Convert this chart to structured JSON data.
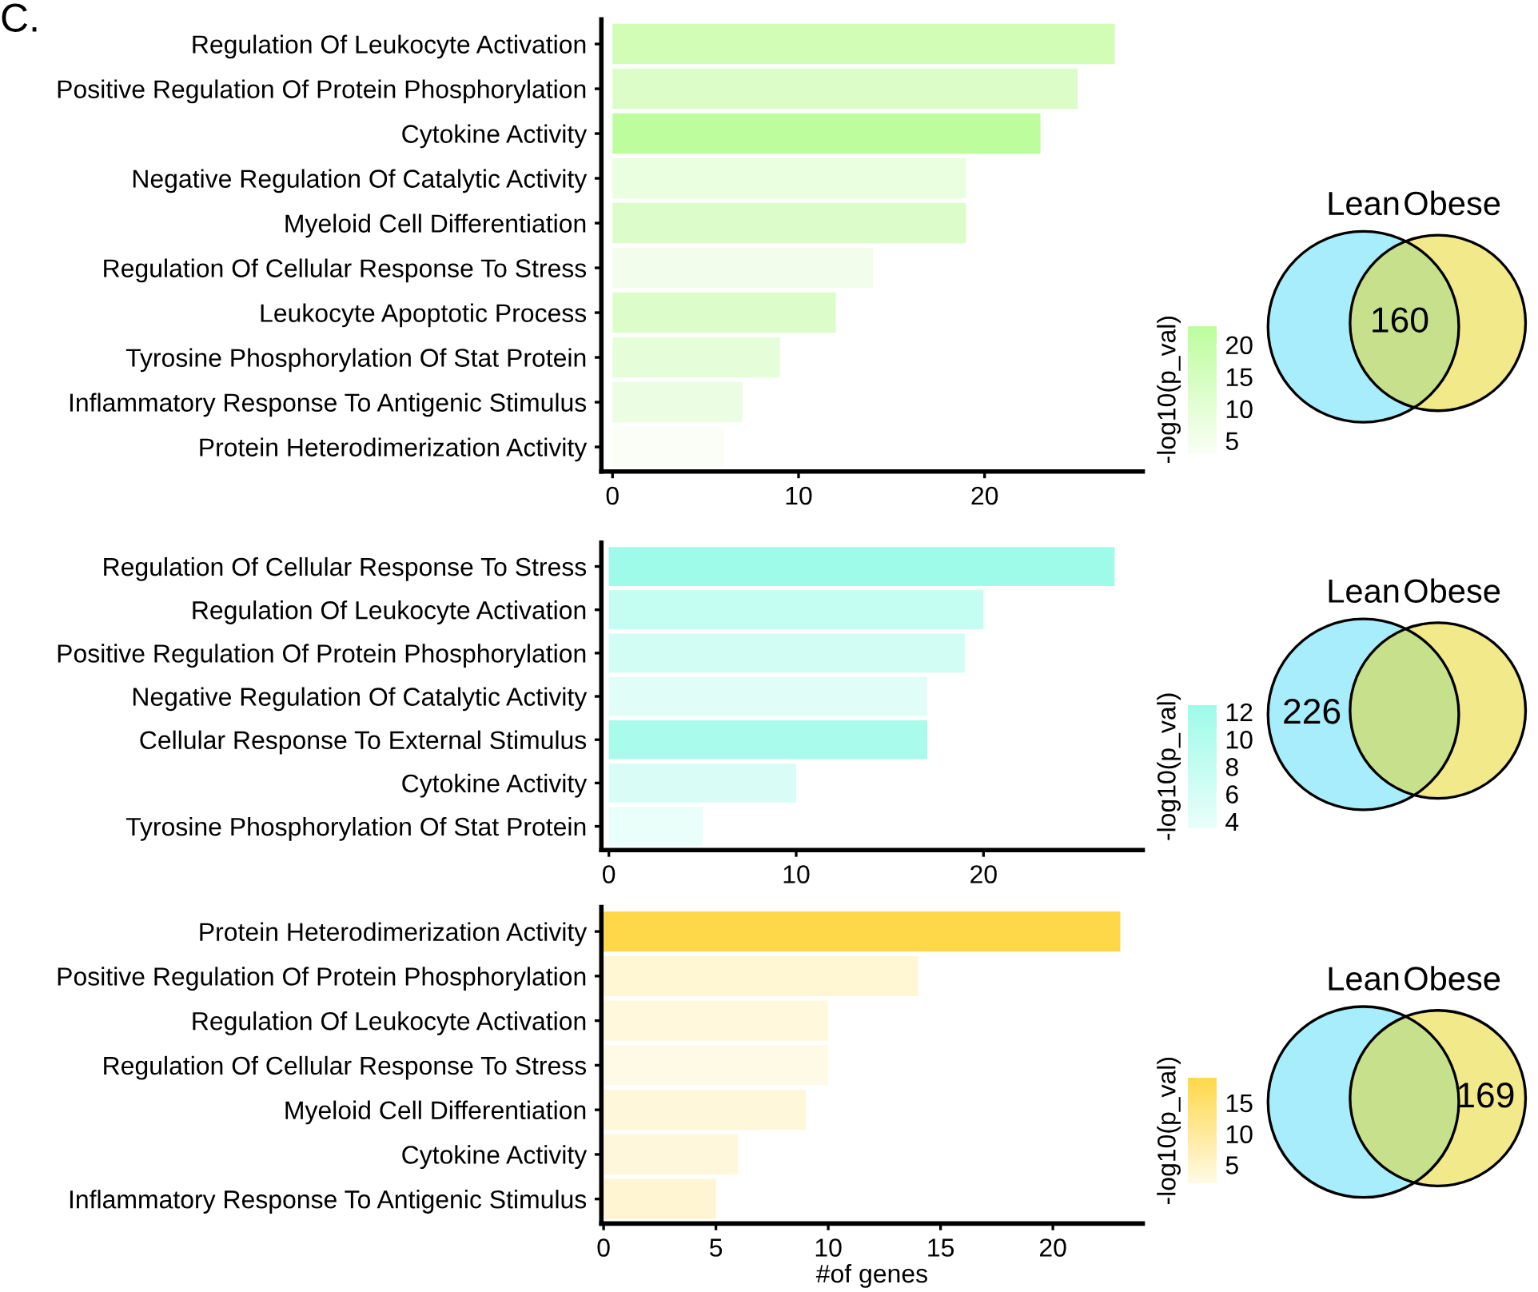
{
  "chart_data": [
    {
      "type": "bar",
      "orientation": "horizontal",
      "annotations": [
        "C."
      ],
      "categories": [
        "Regulation Of Leukocyte Activation",
        "Positive Regulation Of Protein Phosphorylation",
        "Cytokine Activity",
        "Negative Regulation Of Catalytic Activity",
        "Myeloid Cell Differentiation",
        "Regulation Of Cellular Response To Stress",
        "Leukocyte Apoptotic Process",
        "Tyrosine Phosphorylation Of Stat Protein",
        "Inflammatory Response To Antigenic Stimulus",
        "Protein Heterodimerization Activity"
      ],
      "values": [
        27,
        25,
        23,
        19,
        19,
        14,
        12,
        9,
        7,
        6
      ],
      "colors": [
        "#d2fdb6",
        "#dcfdc8",
        "#bdfd9e",
        "#eafee0",
        "#dcfdc9",
        "#f2fdec",
        "#dcfdc9",
        "#e6fdd9",
        "#ebfde3",
        "#fafef6"
      ],
      "xlim": [
        -0.6,
        28.5
      ],
      "xticks": [
        0,
        10,
        20
      ],
      "clabel": "-log10(p_val)",
      "clim": [
        3,
        23
      ],
      "cticks": [
        5,
        10,
        15,
        20
      ],
      "grid": false,
      "legend": false
    },
    {
      "type": "other",
      "categories": [
        "Lean",
        null,
        "Obese"
      ],
      "values": [
        null,
        160,
        null
      ],
      "colors": [
        "#a8edfb",
        "#c6e08c",
        "#f2e98a"
      ],
      "data_labels": true
    },
    {
      "type": "bar",
      "orientation": "horizontal",
      "categories": [
        "Regulation Of Cellular Response To Stress",
        "Regulation Of Leukocyte Activation",
        "Positive Regulation Of Protein Phosphorylation",
        "Negative Regulation Of Catalytic Activity",
        "Cellular Response To External Stimulus",
        "Cytokine Activity",
        "Tyrosine Phosphorylation Of Stat Protein"
      ],
      "values": [
        27,
        20,
        19,
        17,
        17,
        10,
        5
      ],
      "colors": [
        "#9ffbe9",
        "#c4fdf2",
        "#d1fdf5",
        "#e0fdf8",
        "#a9fbeb",
        "#d9fdf6",
        "#eafefa"
      ],
      "xlim": [
        -0.4,
        28.5
      ],
      "xticks": [
        0,
        10,
        20
      ],
      "clabel": "-log10(p_val)",
      "clim": [
        3.5,
        12.5
      ],
      "cticks": [
        4,
        6,
        8,
        10,
        12
      ],
      "grid": false,
      "legend": false
    },
    {
      "type": "other",
      "categories": [
        "Lean",
        null,
        "Obese"
      ],
      "values": [
        226,
        null,
        null
      ],
      "colors": [
        "#a8edfb",
        "#c6e08c",
        "#f2e98a"
      ],
      "data_labels": true
    },
    {
      "type": "bar",
      "orientation": "horizontal",
      "xlabel": "#of genes",
      "categories": [
        "Protein Heterodimerization Activity",
        "Positive Regulation Of Protein Phosphorylation",
        "Regulation Of Leukocyte Activation",
        "Regulation Of Cellular Response To Stress",
        "Myeloid Cell Differentiation",
        "Cytokine Activity",
        "Inflammatory Response To Antigenic Stimulus"
      ],
      "values": [
        23,
        14,
        10,
        10,
        9,
        6,
        5
      ],
      "colors": [
        "#ffd84a",
        "#fff6d3",
        "#fff8dc",
        "#fffae6",
        "#fff7da",
        "#fff7dc",
        "#fff5d2"
      ],
      "xlim": [
        -0.1,
        24
      ],
      "xticks": [
        0,
        5,
        10,
        15,
        20
      ],
      "clabel": "-log10(p_val)",
      "clim": [
        2,
        19
      ],
      "cticks": [
        5,
        10,
        15
      ],
      "grid": false,
      "legend": false
    },
    {
      "type": "other",
      "categories": [
        "Lean",
        null,
        "Obese"
      ],
      "values": [
        null,
        null,
        169
      ],
      "colors": [
        "#a8edfb",
        "#c6e08c",
        "#f2e98a"
      ],
      "data_labels": true
    }
  ]
}
